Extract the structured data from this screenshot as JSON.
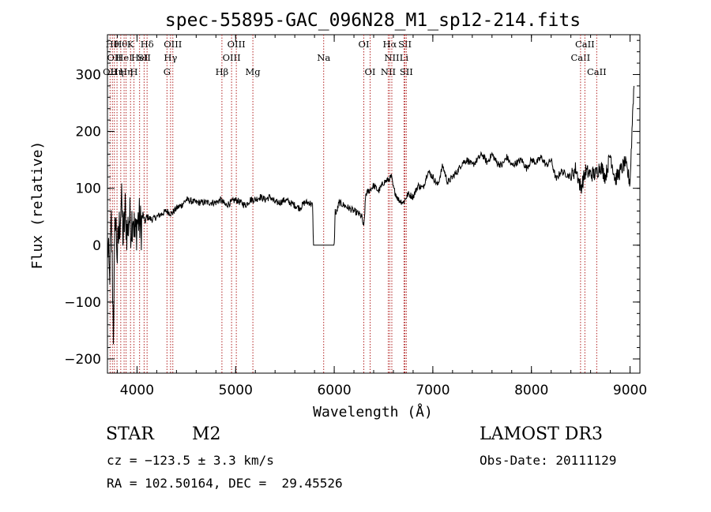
{
  "chart_data": {
    "type": "line",
    "title": "spec-55895-GAC_096N28_M1_sp12-214.fits",
    "xlabel": "Wavelength (Å)",
    "ylabel": "Flux (relative)",
    "xlim": [
      3700,
      9100
    ],
    "ylim": [
      -225,
      370
    ],
    "xticks": [
      4000,
      5000,
      6000,
      7000,
      8000,
      9000
    ],
    "yticks": [
      -200,
      -100,
      0,
      100,
      200,
      300
    ],
    "ytick_labels": [
      "−200",
      "−100",
      "0",
      "100",
      "200",
      "300"
    ],
    "grid": false,
    "series": [
      {
        "x": [
          3700,
          3720,
          3740,
          3760,
          3780,
          3800,
          3820,
          3840,
          3860,
          3880,
          3900,
          3920,
          3940,
          3960,
          3980,
          4000,
          4020,
          4040,
          4060,
          4080,
          4100,
          4150,
          4200,
          4250,
          4300,
          4350,
          4400,
          4450,
          4500,
          4600,
          4700,
          4800,
          4850,
          4900,
          4950,
          5000,
          5050,
          5100,
          5150,
          5200,
          5250,
          5300,
          5350,
          5400,
          5450,
          5500,
          5550,
          5600,
          5650,
          5700,
          5750,
          5780,
          5790,
          5810,
          6000,
          6010,
          6020,
          6050,
          6100,
          6150,
          6200,
          6250,
          6280,
          6300,
          6310,
          6320,
          6350,
          6400,
          6450,
          6500,
          6550,
          6580,
          6600,
          6650,
          6700,
          6750,
          6800,
          6850,
          6900,
          6950,
          7000,
          7050,
          7100,
          7150,
          7200,
          7250,
          7300,
          7350,
          7400,
          7450,
          7500,
          7550,
          7600,
          7650,
          7700,
          7750,
          7800,
          7850,
          7900,
          7950,
          8000,
          8050,
          8100,
          8150,
          8200,
          8250,
          8300,
          8350,
          8400,
          8450,
          8500,
          8550,
          8600,
          8650,
          8700,
          8750,
          8800,
          8850,
          8900,
          8950,
          9000,
          9020,
          9030,
          9040
        ],
        "y": [
          10,
          -60,
          40,
          -150,
          60,
          -20,
          30,
          80,
          10,
          60,
          20,
          50,
          35,
          60,
          10,
          40,
          45,
          30,
          55,
          40,
          50,
          45,
          50,
          55,
          60,
          55,
          65,
          70,
          80,
          75,
          75,
          75,
          80,
          70,
          75,
          80,
          75,
          70,
          80,
          80,
          85,
          80,
          85,
          75,
          75,
          80,
          75,
          70,
          65,
          75,
          75,
          70,
          0,
          0,
          0,
          60,
          55,
          75,
          70,
          65,
          60,
          55,
          50,
          30,
          60,
          90,
          95,
          105,
          95,
          110,
          115,
          120,
          100,
          80,
          75,
          90,
          85,
          105,
          100,
          130,
          120,
          105,
          140,
          110,
          120,
          130,
          145,
          150,
          140,
          150,
          160,
          145,
          160,
          145,
          140,
          155,
          140,
          145,
          150,
          135,
          150,
          145,
          155,
          140,
          150,
          115,
          130,
          125,
          120,
          135,
          100,
          130,
          125,
          125,
          140,
          120,
          160,
          115,
          130,
          145,
          110,
          200,
          250,
          280
        ]
      }
    ],
    "line_markers": [
      {
        "x": 3727,
        "label": "OII",
        "row": 2
      },
      {
        "x": 3750,
        "label": "Hθ",
        "row": 0
      },
      {
        "x": 3770,
        "label": "OII",
        "row": 1
      },
      {
        "x": 3797,
        "label": "Hη",
        "row": 2
      },
      {
        "x": 3835,
        "label": "Hθ",
        "row": 0
      },
      {
        "x": 3869,
        "label": "HeI",
        "row": 1
      },
      {
        "x": 3889,
        "label": "Hη",
        "row": 2
      },
      {
        "x": 3934,
        "label": "K",
        "row": 0
      },
      {
        "x": 3969,
        "label": "H",
        "row": 2
      },
      {
        "x": 4026,
        "label": "HeI",
        "row": 1
      },
      {
        "x": 4072,
        "label": "SII",
        "row": 1
      },
      {
        "x": 4102,
        "label": "Hδ",
        "row": 0
      },
      {
        "x": 4304,
        "label": "G",
        "row": 2
      },
      {
        "x": 4340,
        "label": "Hγ",
        "row": 1
      },
      {
        "x": 4363,
        "label": "OIII",
        "row": 0
      },
      {
        "x": 4861,
        "label": "Hβ",
        "row": 2
      },
      {
        "x": 4959,
        "label": "OIII",
        "row": 1
      },
      {
        "x": 5007,
        "label": "OIII",
        "row": 0
      },
      {
        "x": 5175,
        "label": "Mg",
        "row": 2
      },
      {
        "x": 5893,
        "label": "Na",
        "row": 1
      },
      {
        "x": 6300,
        "label": "OI",
        "row": 0
      },
      {
        "x": 6364,
        "label": "OI",
        "row": 2
      },
      {
        "x": 6548,
        "label": "NII",
        "row": 2
      },
      {
        "x": 6563,
        "label": "Hα",
        "row": 0
      },
      {
        "x": 6584,
        "label": "NII",
        "row": 1
      },
      {
        "x": 6708,
        "label": "Li",
        "row": 1
      },
      {
        "x": 6717,
        "label": "SII",
        "row": 0
      },
      {
        "x": 6731,
        "label": "SII",
        "row": 2
      },
      {
        "x": 8498,
        "label": "CaII",
        "row": 1
      },
      {
        "x": 8542,
        "label": "CaII",
        "row": 0
      },
      {
        "x": 8662,
        "label": "CaII",
        "row": 2
      }
    ]
  },
  "info": {
    "object_class": "STAR",
    "subclass": "M2",
    "survey": "LAMOST DR3",
    "cz": "cz = −123.5 ± 3.3 km/s",
    "obs_date": "Obs-Date: 20111129",
    "coords": "RA = 102.50164, DEC =  29.45526"
  }
}
